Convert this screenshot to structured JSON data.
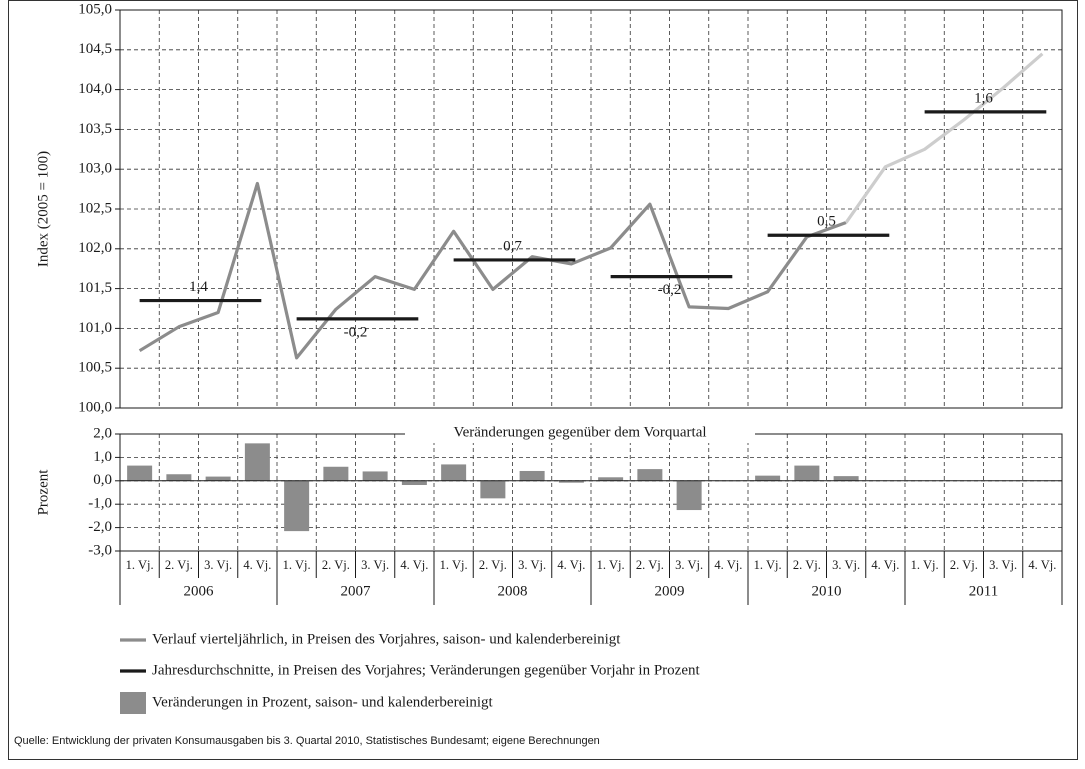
{
  "chart_data": [
    {
      "type": "line",
      "ylabel": "Index (2005 = 100)",
      "ylim": [
        100,
        105
      ],
      "yticks": [
        {
          "value": 100,
          "label": "100,0"
        },
        {
          "value": 100.5,
          "label": "100,5"
        },
        {
          "value": 101,
          "label": "101,0"
        },
        {
          "value": 101.5,
          "label": "101,5"
        },
        {
          "value": 102,
          "label": "102,0"
        },
        {
          "value": 102.5,
          "label": "102,5"
        },
        {
          "value": 103,
          "label": "103,0"
        },
        {
          "value": 103.5,
          "label": "103,5"
        },
        {
          "value": 104,
          "label": "104,0"
        },
        {
          "value": 104.5,
          "label": "104,5"
        },
        {
          "value": 105,
          "label": "105,0"
        }
      ],
      "grid": true,
      "series": [
        {
          "name": "Verlauf vierteljährlich, in Preisen des Vorjahres, saison- und kalenderbereinigt",
          "color": "#8c8c8c",
          "values": [
            100.72,
            101.02,
            101.2,
            102.82,
            100.63,
            101.24,
            101.65,
            101.49,
            102.22,
            101.49,
            101.9,
            101.81,
            102.01,
            102.56,
            101.27,
            101.25,
            101.46,
            102.15,
            102.33,
            null,
            null,
            null,
            null,
            null
          ]
        },
        {
          "color": "#cdcdcd",
          "values": [
            null,
            null,
            null,
            null,
            null,
            null,
            null,
            null,
            null,
            null,
            null,
            null,
            null,
            null,
            null,
            null,
            null,
            null,
            102.33,
            103.03,
            103.25,
            103.62,
            104.02,
            104.45
          ]
        }
      ],
      "annual": {
        "name": "Jahresdurchschnitte, in Preisen des Vorjahres; Veränderungen gegenüber Vorjahr in Prozent",
        "color": "#1a1a1a",
        "values": [
          101.35,
          101.12,
          101.86,
          101.65,
          102.17,
          103.72
        ],
        "labels": [
          "1,4",
          "-0,2",
          "0,7",
          "-0,2",
          "0,5",
          "1,6"
        ]
      }
    },
    {
      "type": "bar",
      "title": "Veränderungen gegenüber dem Vorquartal",
      "ylabel": "Prozent",
      "ylim": [
        -3,
        2
      ],
      "yticks": [
        {
          "value": -3,
          "label": "-3,0"
        },
        {
          "value": -2,
          "label": "-2,0"
        },
        {
          "value": -1,
          "label": "-1,0"
        },
        {
          "value": 0,
          "label": "0,0"
        },
        {
          "value": 1,
          "label": "1,0"
        },
        {
          "value": 2,
          "label": "2,0"
        }
      ],
      "grid": true,
      "categories": [
        "1. Vj.",
        "2. Vj.",
        "3. Vj.",
        "4. Vj.",
        "1. Vj.",
        "2. Vj.",
        "3. Vj.",
        "4. Vj.",
        "1. Vj.",
        "2. Vj.",
        "3. Vj.",
        "4. Vj.",
        "1. Vj.",
        "2. Vj.",
        "3. Vj.",
        "4. Vj.",
        "1. Vj.",
        "2. Vj.",
        "3. Vj.",
        "4. Vj.",
        "1. Vj.",
        "2. Vj.",
        "3. Vj.",
        "4. Vj."
      ],
      "groups": [
        "2006",
        "2007",
        "2008",
        "2009",
        "2010",
        "2011"
      ],
      "series": [
        {
          "name": "Veränderungen in Prozent, saison- und kalenderbereinigt",
          "color": "#8c8c8c",
          "values": [
            0.65,
            0.28,
            0.18,
            1.6,
            -2.15,
            0.6,
            0.4,
            -0.18,
            0.7,
            -0.75,
            0.42,
            -0.08,
            0.15,
            0.5,
            -1.25,
            -0.02,
            0.22,
            0.65,
            0.2,
            null,
            null,
            null,
            null,
            null
          ]
        }
      ]
    }
  ],
  "source": "Quelle: Entwicklung der privaten Konsumausgaben bis 3. Quartal 2010, Statistisches Bundesamt; eigene Berechnungen"
}
